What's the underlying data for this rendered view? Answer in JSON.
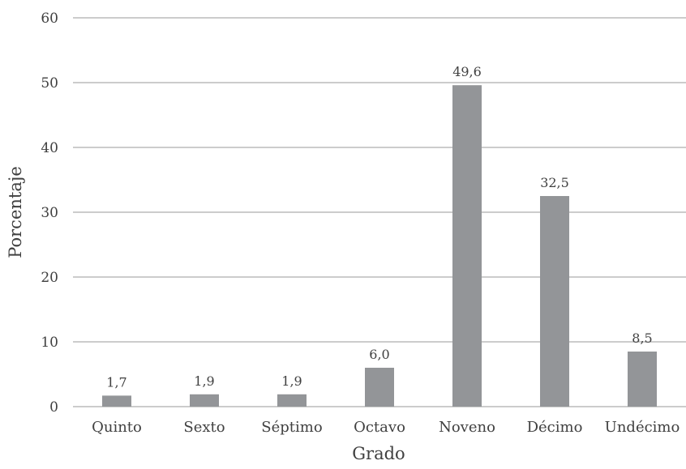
{
  "chart_data": {
    "type": "bar",
    "title": "",
    "xlabel": "Grado",
    "ylabel": "Porcentaje",
    "categories": [
      "Quinto",
      "Sexto",
      "Séptimo",
      "Octavo",
      "Noveno",
      "Décimo",
      "Undécimo"
    ],
    "values": [
      1.7,
      1.9,
      1.9,
      6.0,
      49.6,
      32.5,
      8.5
    ],
    "value_labels": [
      "1,7",
      "1,9",
      "1,9",
      "6,0",
      "49,6",
      "32,5",
      "8,5"
    ],
    "ylim": [
      0,
      60
    ],
    "yticks": [
      0,
      10,
      20,
      30,
      40,
      50,
      60
    ],
    "grid": true,
    "legend": "none",
    "bar_color": "#939598"
  }
}
